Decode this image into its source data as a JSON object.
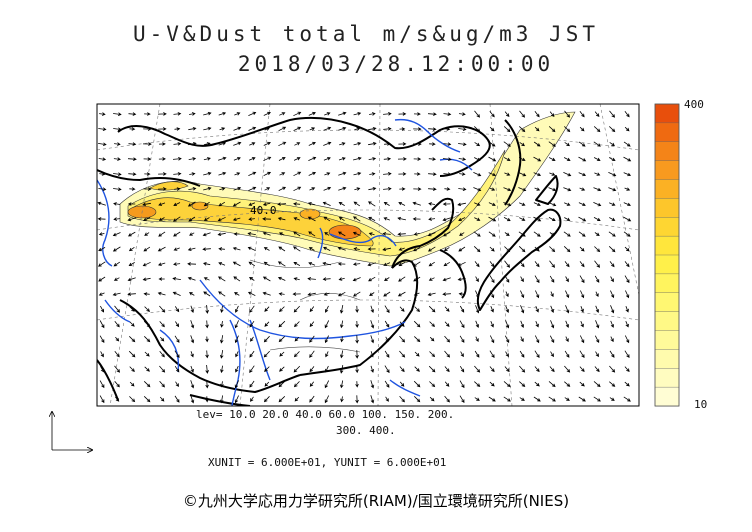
{
  "title": {
    "line1": "U-V&Dust total m/s&ug/m3 JST",
    "line2": "2018/03/28.12:00:00"
  },
  "map": {
    "contour_label": "40.0",
    "contour_levels_label_1": "lev= 10.0 20.0 40.0 60.0 100. 150. 200.",
    "contour_levels_label_2": "300. 400.",
    "units_label": "XUNIT = 6.000E+01, YUNIT = 6.000E+01"
  },
  "colorbar": {
    "max_label": "400",
    "min_label": "10",
    "colors": [
      "#e84f0c",
      "#ef6a11",
      "#f48418",
      "#f89a1f",
      "#fbb124",
      "#fdc62b",
      "#fed632",
      "#ffe63c",
      "#fff04a",
      "#fff45e",
      "#fff772",
      "#fff986",
      "#fffa9a",
      "#fffbad",
      "#fffcc0",
      "#fffdd4"
    ]
  },
  "copyright": "©九州大学応用力学研究所(RIAM)/国立環境研究所(NIES)"
}
